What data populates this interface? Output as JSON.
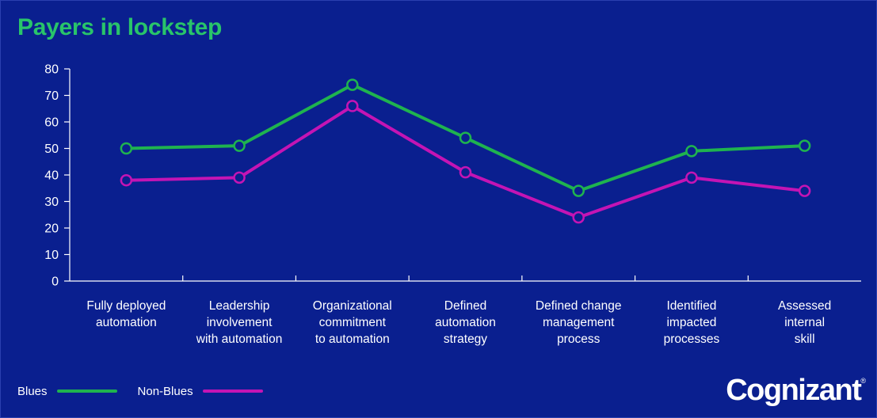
{
  "chart_data": {
    "type": "line",
    "title": "Payers in lockstep",
    "categories": [
      [
        "Fully deployed",
        "automation"
      ],
      [
        "Leadership",
        "involvement",
        "with automation"
      ],
      [
        "Organizational",
        "commitment",
        "to automation"
      ],
      [
        "Defined",
        "automation",
        "strategy"
      ],
      [
        "Defined change",
        "management",
        "process"
      ],
      [
        "Identified",
        "impacted",
        "processes"
      ],
      [
        "Assessed",
        "internal",
        "skill"
      ]
    ],
    "yticks": [
      0,
      10,
      20,
      30,
      40,
      50,
      60,
      70,
      80
    ],
    "ylim": [
      0,
      80
    ],
    "series": [
      {
        "name": "Blues",
        "color": "#1fb34f",
        "values": [
          50,
          51,
          74,
          54,
          34,
          49,
          51
        ]
      },
      {
        "name": "Non-Blues",
        "color": "#c414b4",
        "values": [
          38,
          39,
          66,
          41,
          24,
          39,
          34
        ]
      }
    ],
    "legend": "bottom-left",
    "grid": false
  },
  "brand": {
    "logo_text": "Cognizant",
    "logo_mark": "®"
  }
}
